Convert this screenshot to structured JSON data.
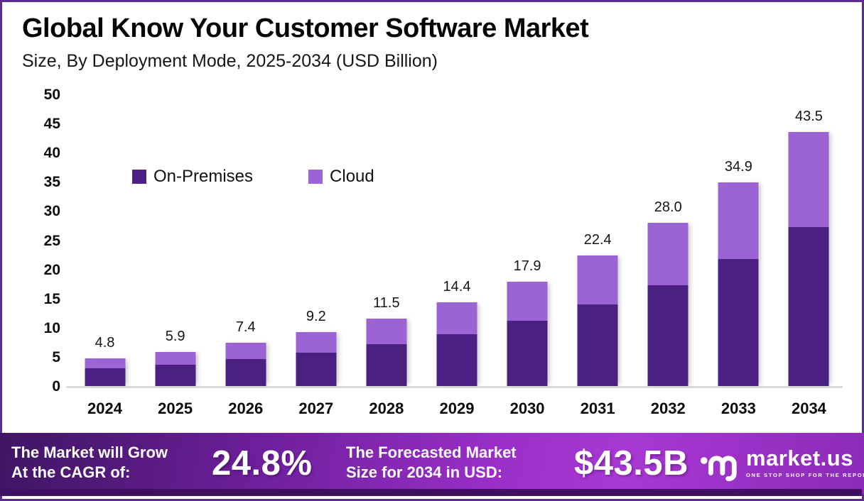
{
  "header": {
    "title": "Global Know Your Customer Software Market",
    "subtitle": "Size, By Deployment Mode, 2025-2034 (USD Billion)"
  },
  "chart_data": {
    "type": "bar",
    "stacked": true,
    "title": "Global Know Your Customer Software Market Size, By Deployment Mode, 2025-2034 (USD Billion)",
    "categories": [
      "2024",
      "2025",
      "2026",
      "2027",
      "2028",
      "2029",
      "2030",
      "2031",
      "2032",
      "2033",
      "2034"
    ],
    "series": [
      {
        "name": "On-Premises",
        "color": "#4a2083",
        "values": [
          3.0,
          3.7,
          4.6,
          5.7,
          7.2,
          8.9,
          11.2,
          14.0,
          17.3,
          21.8,
          27.2
        ]
      },
      {
        "name": "Cloud",
        "color": "#9c63d4",
        "values": [
          1.8,
          2.2,
          2.8,
          3.5,
          4.3,
          5.5,
          6.7,
          8.4,
          10.7,
          13.1,
          16.3
        ]
      }
    ],
    "totals": [
      4.8,
      5.9,
      7.4,
      9.2,
      11.5,
      14.4,
      17.9,
      22.4,
      28.0,
      34.9,
      43.5
    ],
    "total_labels": [
      "4.8",
      "5.9",
      "7.4",
      "9.2",
      "11.5",
      "14.4",
      "17.9",
      "22.4",
      "28.0",
      "34.9",
      "43.5"
    ],
    "xlabel": "",
    "ylabel": "",
    "ylim": [
      0,
      50
    ],
    "ytick_step": 5,
    "grid": false,
    "legend_position": "inside-upper-left"
  },
  "footer": {
    "cagr_label": "The Market will Grow\nAt the CAGR of:",
    "cagr_value": "24.8%",
    "forecast_label": "The Forecasted Market\nSize for 2034 in USD:",
    "forecast_value": "$43.5B",
    "brand_name": "market.us",
    "brand_tagline": "ONE STOP SHOP FOR THE REPORTS",
    "brand_logo": "market-us-wave-logo"
  },
  "colors": {
    "border": "#5c2b8e",
    "on_premises": "#4a2083",
    "cloud": "#9c63d4",
    "axis_line": "#dcdcdc",
    "footer_gradient_start": "#3e1563",
    "footer_gradient_mid": "#9b2fc9",
    "footer_gradient_end": "#8c2ab8",
    "footer_bottom_strip": "#3f1062",
    "text": "#0a0a0a",
    "footer_text": "#ffffff"
  }
}
